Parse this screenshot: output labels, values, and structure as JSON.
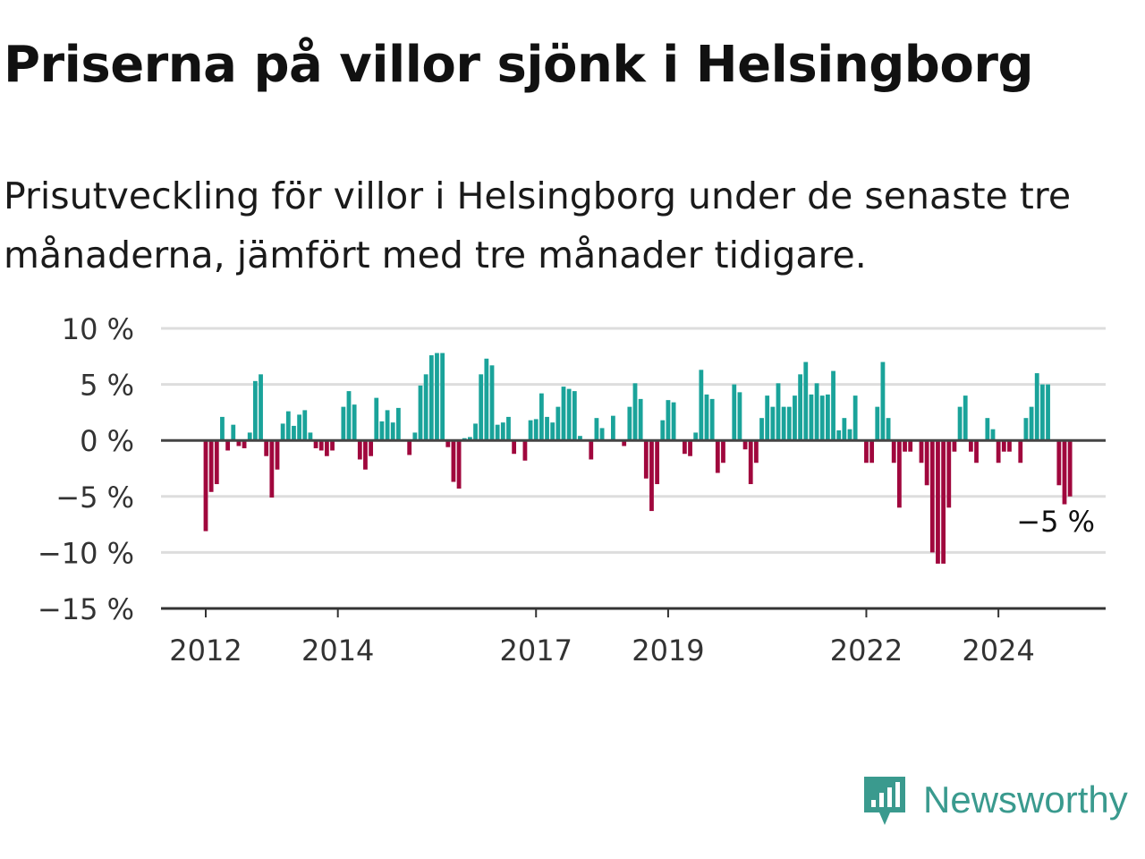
{
  "title": "Priserna på villor sjönk i Helsingborg",
  "subtitle": "Prisutveckling för villor i Helsingborg under de senaste tre\nmånaderna, jämfört med tre månader tidigare.",
  "brand": {
    "name": "Newsworthy",
    "icon": "newsworthy-logo-icon",
    "color": "#3a9a8e"
  },
  "colors": {
    "positive": "#1aa39a",
    "negative": "#a0073d",
    "grid": "#dddddd",
    "zero_line": "#444444",
    "axis": "#333333"
  },
  "chart_data": {
    "type": "bar",
    "x_unit": "month",
    "x_start": "2012-01",
    "x_end": "2025-01",
    "ylim": [
      -15,
      10
    ],
    "yticks": [
      10,
      5,
      0,
      -5,
      -10,
      -15
    ],
    "ytick_labels": [
      "10 %",
      "5 %",
      "0 %",
      "−5 %",
      "−10 %",
      "−15 %"
    ],
    "xticks": [
      "2012",
      "2014",
      "2017",
      "2019",
      "2022",
      "2024"
    ],
    "annotation": "−5 %",
    "grid": true,
    "legend": "none",
    "values": [
      -8.1,
      -4.6,
      -3.9,
      2.1,
      -0.9,
      1.4,
      -0.5,
      -0.7,
      0.7,
      5.3,
      5.9,
      -1.4,
      -5.1,
      -2.6,
      1.5,
      2.6,
      1.3,
      2.3,
      2.7,
      0.7,
      -0.7,
      -0.9,
      -1.4,
      -0.9,
      0,
      3.0,
      4.4,
      3.2,
      -1.7,
      -2.6,
      -1.4,
      3.8,
      1.7,
      2.7,
      1.6,
      2.9,
      0,
      -1.3,
      0.7,
      4.9,
      5.9,
      7.6,
      7.8,
      7.8,
      -0.6,
      -3.7,
      -4.3,
      0.2,
      0.3,
      1.5,
      5.9,
      7.3,
      6.7,
      1.4,
      1.6,
      2.1,
      -1.2,
      0,
      -1.8,
      1.8,
      1.9,
      4.2,
      2.1,
      1.6,
      3.0,
      4.8,
      4.6,
      4.4,
      0.4,
      0,
      -1.7,
      2.0,
      1.1,
      0,
      2.2,
      0,
      -0.5,
      3.0,
      5.1,
      3.7,
      -3.4,
      -6.3,
      -3.9,
      1.8,
      3.6,
      3.4,
      0,
      -1.2,
      -1.4,
      0.7,
      6.3,
      4.1,
      3.7,
      -2.9,
      -2.0,
      0,
      5.0,
      4.3,
      -0.8,
      -3.9,
      -2.0,
      2.0,
      4.0,
      3.0,
      5.1,
      3.0,
      3.0,
      4.0,
      5.9,
      7.0,
      4.1,
      5.1,
      4.0,
      4.1,
      6.2,
      0.9,
      2.0,
      1.0,
      4.0,
      0,
      -2.0,
      -2.0,
      3.0,
      7.0,
      2.0,
      -2.0,
      -6.0,
      -1.0,
      -1.0,
      0,
      -2.0,
      -4.0,
      -10.0,
      -11.0,
      -11.0,
      -6.0,
      -1.0,
      3.0,
      4.0,
      -1.0,
      -2.0,
      0,
      2.0,
      1.0,
      -2.0,
      -1.0,
      -1.0,
      0,
      -2.0,
      2.0,
      3.0,
      6.0,
      5.0,
      5.0,
      0,
      -4.0,
      -5.7,
      -5.0
    ]
  }
}
